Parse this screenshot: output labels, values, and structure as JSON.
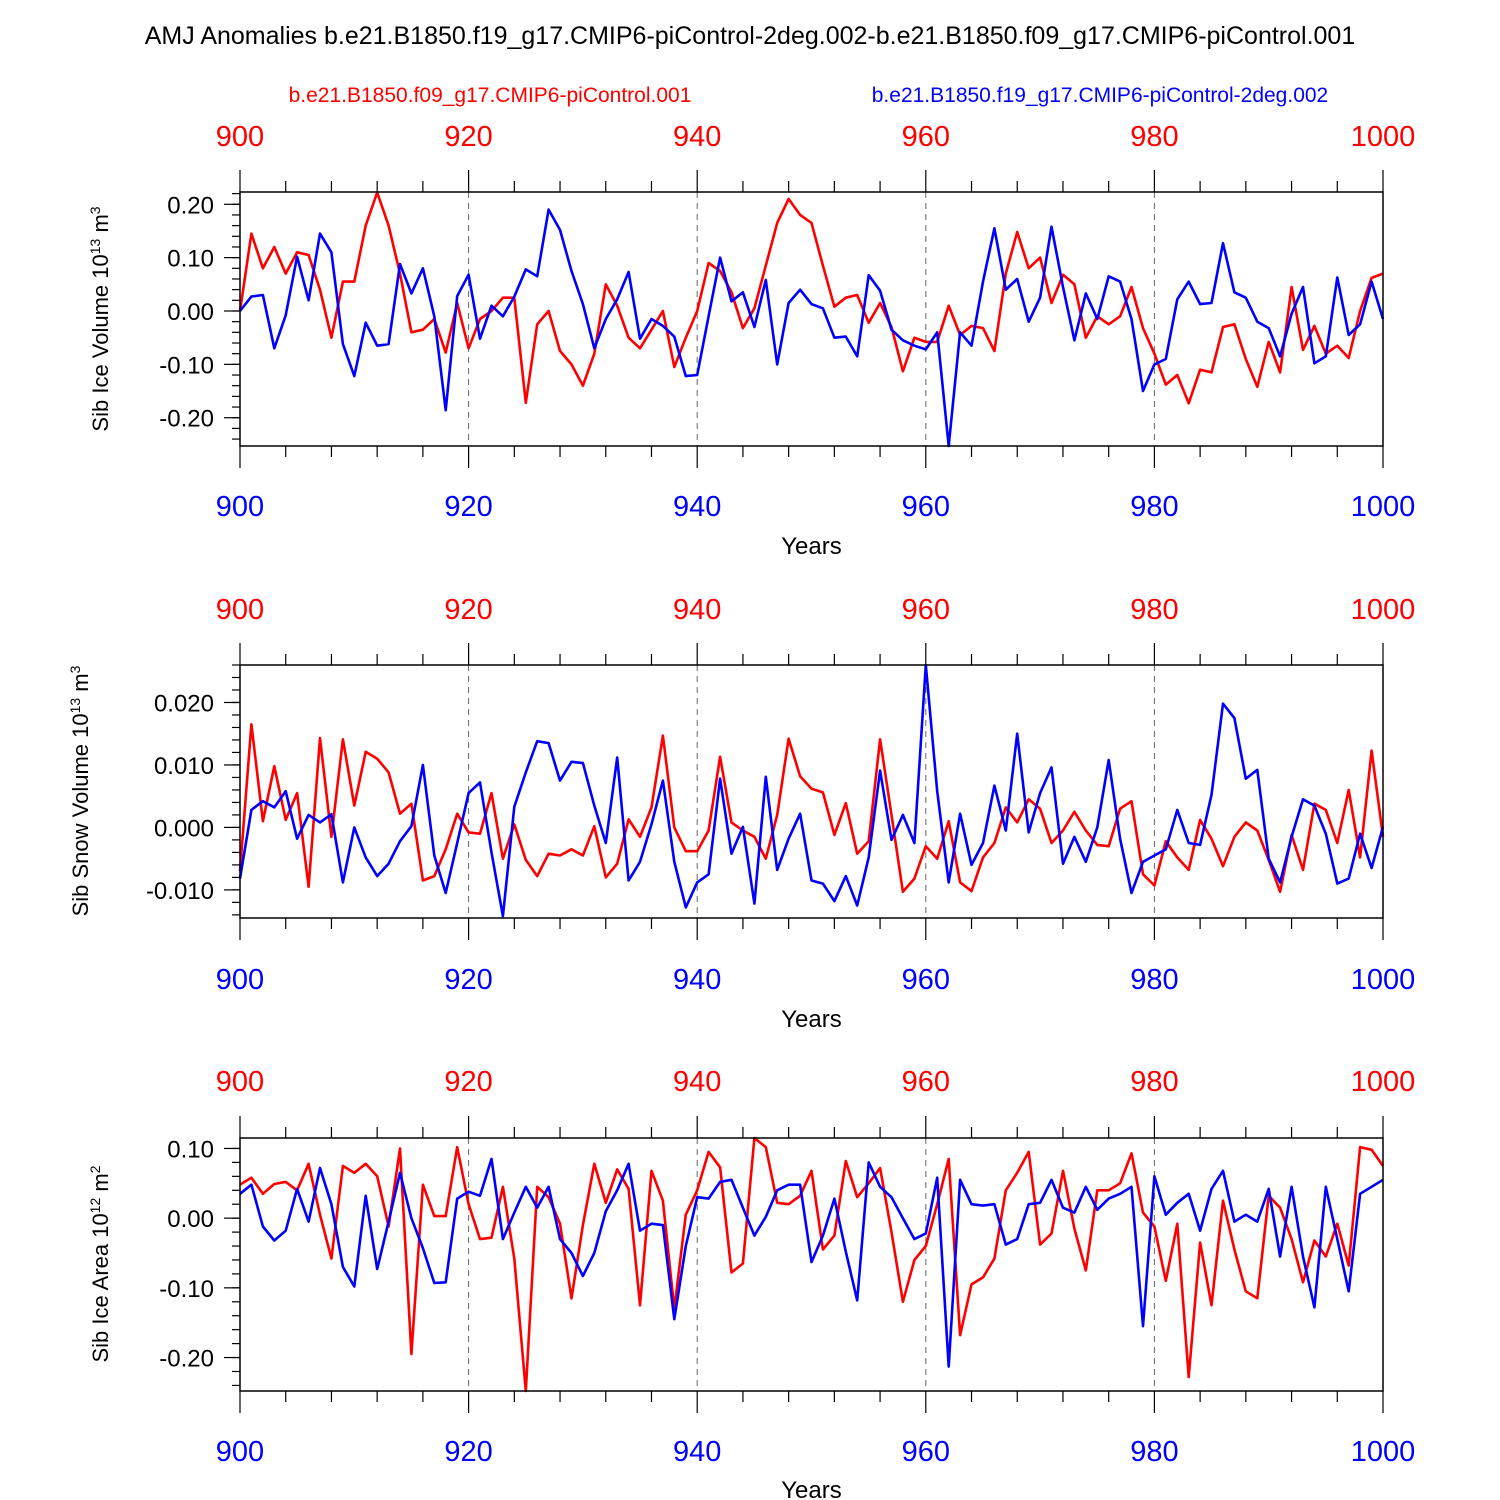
{
  "title": "AMJ Anomalies b.e21.B1850.f19_g17.CMIP6-piControl-2deg.002-b.e21.B1850.f09_g17.CMIP6-piControl.001",
  "legend": [
    {
      "name": "b.e21.B1850.f09_g17.CMIP6-piControl.001",
      "color": "#ff0000"
    },
    {
      "name": "b.e21.B1850.f19_g17.CMIP6-piControl-2deg.002",
      "color": "#0000ff"
    }
  ],
  "chart_data": [
    {
      "type": "line",
      "ylabel": "Sib Ice Volume 10",
      "ylabel_exp": "13",
      "ylabel_unit": " m",
      "ylabel_unit_exp": "3",
      "xlabel": "Years",
      "xlim": [
        900,
        1000
      ],
      "ylim": [
        -0.253,
        0.223
      ],
      "yticks": [
        0.2,
        0.1,
        0.0,
        -0.1,
        -0.2
      ],
      "ytick_labels": [
        "0.20",
        "0.10",
        "0.00",
        "-0.10",
        "-0.20"
      ],
      "minor_step": 0.02,
      "xticks": [
        900,
        920,
        940,
        960,
        980,
        1000
      ],
      "xtick_labels_top": [
        "900",
        "920",
        "940",
        "960",
        "980",
        "1000"
      ],
      "xtick_labels_bottom": [
        "900",
        "920",
        "940",
        "960",
        "980",
        "1000"
      ],
      "vgrid": [
        920,
        940,
        960,
        980
      ],
      "series": [
        {
          "name": "b.e21.B1850.f09_g17.CMIP6-piControl.001",
          "color": "#ff0000",
          "values": [
            0.0,
            0.145,
            0.08,
            0.12,
            0.07,
            0.11,
            0.105,
            0.04,
            -0.05,
            0.055,
            0.055,
            0.16,
            0.222,
            0.16,
            0.07,
            -0.04,
            -0.035,
            -0.015,
            -0.078,
            0.015,
            -0.07,
            -0.015,
            0.0,
            0.025,
            0.025,
            -0.172,
            -0.025,
            0.0,
            -0.075,
            -0.1,
            -0.14,
            -0.08,
            0.05,
            0.01,
            -0.05,
            -0.07,
            -0.035,
            0.0,
            -0.105,
            -0.05,
            0.0,
            0.09,
            0.075,
            0.035,
            -0.032,
            0.005,
            0.085,
            0.165,
            0.21,
            0.18,
            0.165,
            0.085,
            0.008,
            0.025,
            0.03,
            -0.022,
            0.015,
            -0.03,
            -0.113,
            -0.05,
            -0.058,
            -0.058,
            0.01,
            -0.045,
            -0.028,
            -0.032,
            -0.075,
            0.07,
            0.148,
            0.08,
            0.1,
            0.015,
            0.068,
            0.05,
            -0.05,
            -0.01,
            -0.025,
            -0.01,
            0.045,
            -0.032,
            -0.08,
            -0.138,
            -0.12,
            -0.173,
            -0.11,
            -0.115,
            -0.03,
            -0.025,
            -0.09,
            -0.142,
            -0.058,
            -0.115,
            0.045,
            -0.073,
            -0.028,
            -0.08,
            -0.065,
            -0.088,
            0.0,
            0.062,
            0.07
          ]
        },
        {
          "name": "b.e21.B1850.f19_g17.CMIP6-piControl-2deg.002",
          "color": "#0000ff",
          "values": [
            0.0,
            0.027,
            0.03,
            -0.07,
            -0.008,
            0.102,
            0.02,
            0.145,
            0.11,
            -0.062,
            -0.122,
            -0.022,
            -0.065,
            -0.062,
            0.088,
            0.033,
            0.08,
            -0.01,
            -0.186,
            0.028,
            0.068,
            -0.052,
            0.01,
            -0.01,
            0.027,
            0.078,
            0.065,
            0.19,
            0.152,
            0.075,
            0.013,
            -0.07,
            -0.015,
            0.022,
            0.073,
            -0.052,
            -0.015,
            -0.028,
            -0.048,
            -0.122,
            -0.12,
            -0.01,
            0.1,
            0.018,
            0.035,
            -0.03,
            0.058,
            -0.1,
            0.015,
            0.04,
            0.013,
            0.005,
            -0.05,
            -0.048,
            -0.085,
            0.067,
            0.038,
            -0.035,
            -0.055,
            -0.065,
            -0.072,
            -0.04,
            -0.253,
            -0.04,
            -0.065,
            0.055,
            0.155,
            0.04,
            0.06,
            -0.02,
            0.025,
            0.158,
            0.045,
            -0.055,
            0.033,
            -0.015,
            0.065,
            0.055,
            -0.015,
            -0.15,
            -0.1,
            -0.09,
            0.022,
            0.055,
            0.013,
            0.015,
            0.127,
            0.035,
            0.025,
            -0.02,
            -0.032,
            -0.085,
            -0.005,
            0.045,
            -0.098,
            -0.085,
            0.063,
            -0.045,
            -0.025,
            0.055,
            -0.015
          ]
        }
      ]
    },
    {
      "type": "line",
      "ylabel": "Sib Snow Volume 10",
      "ylabel_exp": "13",
      "ylabel_unit": " m",
      "ylabel_unit_exp": "3",
      "xlabel": "Years",
      "xlim": [
        900,
        1000
      ],
      "ylim": [
        -0.0145,
        0.026
      ],
      "yticks": [
        0.02,
        0.01,
        0.0,
        -0.01
      ],
      "ytick_labels": [
        "0.020",
        "0.010",
        "0.000",
        "-0.010"
      ],
      "minor_step": 0.002,
      "xticks": [
        900,
        920,
        940,
        960,
        980,
        1000
      ],
      "xtick_labels_top": [
        "900",
        "920",
        "940",
        "960",
        "980",
        "1000"
      ],
      "xtick_labels_bottom": [
        "900",
        "920",
        "940",
        "960",
        "980",
        "1000"
      ],
      "vgrid": [
        920,
        940,
        960,
        980
      ],
      "series": [
        {
          "name": "b.e21.B1850.f09_g17.CMIP6-piControl.001",
          "color": "#ff0000",
          "values": [
            -0.007,
            0.0165,
            0.001,
            0.0098,
            0.0012,
            0.0055,
            -0.0095,
            0.0143,
            -0.0015,
            0.0141,
            0.0035,
            0.0121,
            0.011,
            0.0088,
            0.0022,
            0.0038,
            -0.0085,
            -0.0078,
            -0.0035,
            0.0022,
            -0.0008,
            -0.001,
            0.0055,
            -0.005,
            0.0005,
            -0.0052,
            -0.0078,
            -0.0042,
            -0.0045,
            -0.0035,
            -0.0045,
            0.0002,
            -0.008,
            -0.0058,
            0.0013,
            -0.0015,
            0.0032,
            0.0147,
            0.0,
            -0.0038,
            -0.0038,
            -0.0005,
            0.0113,
            0.0008,
            -0.0005,
            -0.0015,
            -0.005,
            0.002,
            0.0142,
            0.0082,
            0.0062,
            0.0056,
            -0.0012,
            0.0039,
            -0.0042,
            -0.0022,
            0.0141,
            0.002,
            -0.0103,
            -0.0082,
            -0.003,
            -0.005,
            0.001,
            -0.0088,
            -0.0102,
            -0.0048,
            -0.0025,
            0.0032,
            0.0008,
            0.0045,
            0.003,
            -0.0025,
            -0.0005,
            0.0025,
            -0.0005,
            -0.0028,
            -0.003,
            0.003,
            0.0042,
            -0.0075,
            -0.0093,
            -0.0022,
            -0.0048,
            -0.0068,
            0.0012,
            -0.0018,
            -0.0062,
            -0.0015,
            0.0008,
            -0.0005,
            -0.0052,
            -0.0103,
            -0.0012,
            -0.0068,
            0.0038,
            0.0028,
            -0.0025,
            0.006,
            -0.0048,
            0.0123,
            -0.0015
          ]
        },
        {
          "name": "b.e21.B1850.f19_g17.CMIP6-piControl-2deg.002",
          "color": "#0000ff",
          "values": [
            -0.0082,
            0.0028,
            0.0042,
            0.0032,
            0.0058,
            -0.0018,
            0.002,
            0.0008,
            0.0021,
            -0.0088,
            0.0,
            -0.0048,
            -0.0078,
            -0.0058,
            -0.0022,
            0.0002,
            0.01,
            -0.0045,
            -0.0105,
            -0.0025,
            0.0055,
            0.0072,
            -0.004,
            -0.0142,
            0.0033,
            0.0088,
            0.0138,
            0.0135,
            0.0075,
            0.0105,
            0.0103,
            0.0035,
            -0.0025,
            0.0112,
            -0.0085,
            -0.0055,
            0.0005,
            0.0075,
            -0.0055,
            -0.0128,
            -0.0088,
            -0.0075,
            0.0078,
            -0.0042,
            0.0001,
            -0.0122,
            0.0081,
            -0.0068,
            -0.0018,
            0.0022,
            -0.0085,
            -0.009,
            -0.0118,
            -0.0078,
            -0.0125,
            -0.0048,
            0.0091,
            -0.002,
            0.002,
            -0.0025,
            0.026,
            0.0058,
            -0.0088,
            0.0022,
            -0.006,
            -0.0025,
            0.0067,
            -0.0005,
            0.015,
            -0.0008,
            0.0055,
            0.0096,
            -0.0058,
            -0.0015,
            -0.0055,
            0.0,
            0.0108,
            -0.0018,
            -0.0105,
            -0.0055,
            -0.0045,
            -0.0035,
            0.0028,
            -0.0025,
            -0.0028,
            0.0052,
            0.0198,
            0.0175,
            0.0078,
            0.0092,
            -0.005,
            -0.0088,
            -0.0015,
            0.0045,
            0.0035,
            -0.001,
            -0.009,
            -0.0082,
            -0.001,
            -0.0065,
            0.0001
          ]
        }
      ]
    },
    {
      "type": "line",
      "ylabel": "Sib Ice Area 10",
      "ylabel_exp": "12",
      "ylabel_unit": " m",
      "ylabel_unit_exp": "2",
      "xlabel": "Years",
      "xlim": [
        900,
        1000
      ],
      "ylim": [
        -0.248,
        0.115
      ],
      "yticks": [
        0.1,
        0.0,
        -0.1,
        -0.2
      ],
      "ytick_labels": [
        "0.10",
        "0.00",
        "-0.10",
        "-0.20"
      ],
      "minor_step": 0.02,
      "xticks": [
        900,
        920,
        940,
        960,
        980,
        1000
      ],
      "xtick_labels_top": [
        "900",
        "920",
        "940",
        "960",
        "980",
        "1000"
      ],
      "xtick_labels_bottom": [
        "900",
        "920",
        "940",
        "960",
        "980",
        "1000"
      ],
      "vgrid": [
        920,
        940,
        960,
        980
      ],
      "series": [
        {
          "name": "b.e21.B1850.f09_g17.CMIP6-piControl.001",
          "color": "#ff0000",
          "values": [
            0.048,
            0.058,
            0.035,
            0.049,
            0.052,
            0.04,
            0.078,
            0.005,
            -0.058,
            0.075,
            0.065,
            0.078,
            0.06,
            -0.012,
            0.1,
            -0.195,
            0.048,
            0.003,
            0.003,
            0.102,
            0.02,
            -0.03,
            -0.028,
            0.045,
            -0.058,
            -0.248,
            0.045,
            0.03,
            -0.008,
            -0.115,
            -0.01,
            0.078,
            0.022,
            0.07,
            0.042,
            -0.125,
            0.068,
            0.025,
            -0.13,
            0.005,
            0.04,
            0.095,
            0.073,
            -0.078,
            -0.065,
            0.115,
            0.102,
            0.022,
            0.02,
            0.032,
            0.068,
            -0.045,
            -0.025,
            0.082,
            0.03,
            0.05,
            0.072,
            -0.02,
            -0.12,
            -0.06,
            -0.04,
            0.02,
            0.085,
            -0.168,
            -0.095,
            -0.085,
            -0.058,
            0.04,
            0.065,
            0.095,
            -0.038,
            -0.022,
            0.068,
            -0.015,
            -0.075,
            0.04,
            0.04,
            0.05,
            0.093,
            0.008,
            -0.012,
            -0.09,
            -0.008,
            -0.228,
            -0.035,
            -0.125,
            0.025,
            -0.045,
            -0.105,
            -0.115,
            0.032,
            0.015,
            -0.03,
            -0.092,
            -0.032,
            -0.055,
            -0.008,
            -0.068,
            0.102,
            0.098,
            0.075
          ]
        },
        {
          "name": "b.e21.B1850.f19_g17.CMIP6-piControl-2deg.002",
          "color": "#0000ff",
          "values": [
            0.035,
            0.048,
            -0.012,
            -0.032,
            -0.018,
            0.042,
            -0.005,
            0.072,
            0.02,
            -0.07,
            -0.098,
            0.032,
            -0.073,
            -0.005,
            0.065,
            0.0,
            -0.043,
            -0.093,
            -0.092,
            0.028,
            0.038,
            0.032,
            0.085,
            -0.03,
            0.008,
            0.045,
            0.015,
            0.045,
            -0.03,
            -0.05,
            -0.083,
            -0.05,
            0.01,
            0.04,
            0.078,
            -0.018,
            -0.008,
            -0.01,
            -0.145,
            -0.04,
            0.03,
            0.028,
            0.052,
            0.055,
            0.015,
            -0.025,
            0.002,
            0.04,
            0.048,
            0.048,
            -0.063,
            -0.025,
            0.028,
            -0.048,
            -0.118,
            0.08,
            0.045,
            0.03,
            0.0,
            -0.03,
            -0.022,
            0.058,
            -0.213,
            0.055,
            0.02,
            0.018,
            0.02,
            -0.038,
            -0.03,
            0.02,
            0.022,
            0.055,
            0.015,
            0.008,
            0.045,
            0.012,
            0.028,
            0.035,
            0.045,
            -0.155,
            0.06,
            0.005,
            0.022,
            0.035,
            -0.018,
            0.042,
            0.068,
            -0.005,
            0.005,
            -0.005,
            0.042,
            -0.055,
            0.045,
            -0.055,
            -0.128,
            0.045,
            -0.03,
            -0.105,
            0.035,
            0.045,
            0.055
          ]
        }
      ]
    }
  ]
}
